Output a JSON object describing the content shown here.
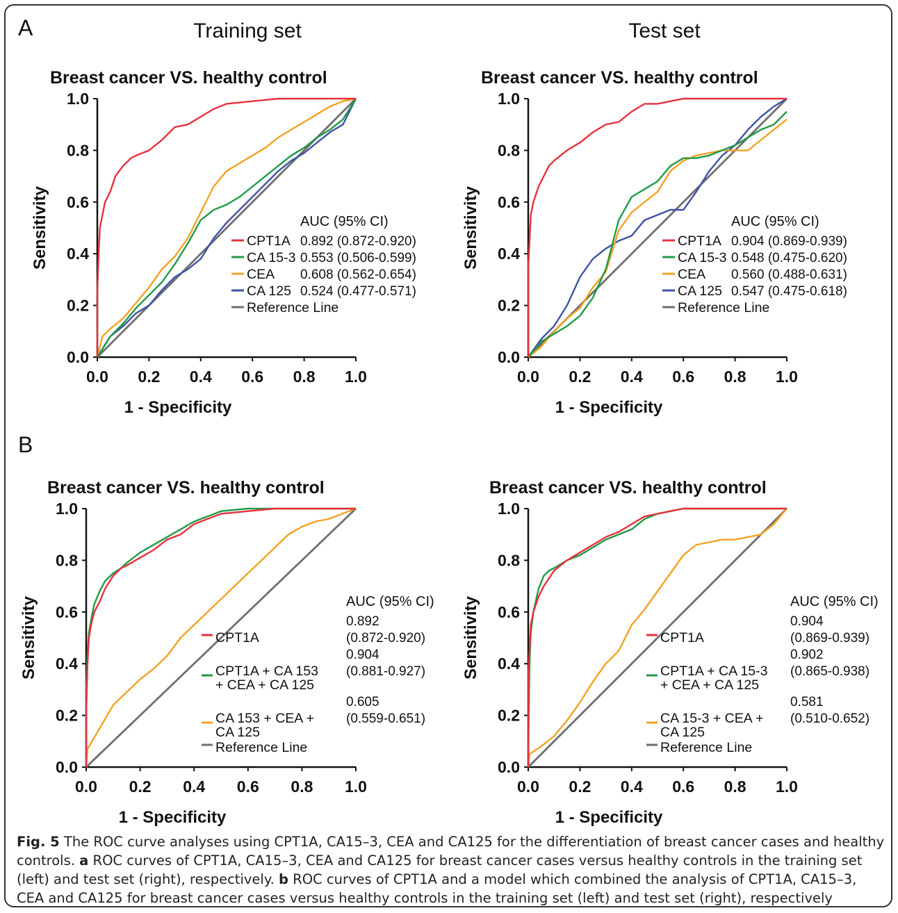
{
  "panels": {
    "A": "A",
    "B": "B"
  },
  "set_titles": {
    "training": "Training set",
    "test": "Test set"
  },
  "colors": {
    "CPT1A": "#e8303a",
    "CA153": "#1f9a48",
    "CEA": "#f4a122",
    "CA125": "#3f52a8",
    "reference": "#6e6e6e",
    "combined_all": "#1f9a48",
    "combined_markers": "#f4a122"
  },
  "caption": {
    "fig_label": "Fig. 5",
    "intro": " The ROC curve analyses using CPT1A, CA15–3, CEA and CA125 for the differentiation of breast cancer cases and healthy controls. ",
    "a_label": "a",
    "a_text": " ROC curves of CPT1A, CA15–3, CEA and CA125 for breast cancer cases versus healthy controls in the training set (left) and test set (right), respectively. ",
    "b_label": "b",
    "b_text": " ROC curves of CPT1A and a model which combined the analysis of CPT1A, CA15–3, CEA and CA125 for breast cancer cases versus healthy controls in the training set (left) and test set (right), respectively"
  },
  "chart_data": [
    {
      "type": "line",
      "title": "Breast cancer VS. healthy control",
      "xlabel": "1 - Specificity",
      "ylabel": "Sensitivity",
      "xlim": [
        0,
        1
      ],
      "ylim": [
        0,
        1
      ],
      "xticks": [
        "0.0",
        "0.2",
        "0.4",
        "0.6",
        "0.8",
        "1.0"
      ],
      "yticks": [
        "0.0",
        "0.2",
        "0.4",
        "0.6",
        "0.8",
        "1.0"
      ],
      "legend_header": "AUC (95% CI)",
      "legend_position": "bottom-right",
      "series": [
        {
          "name": "CPT1A",
          "color_key": "CPT1A",
          "auc": "0.892 (0.872-0.920)",
          "x": [
            0,
            0,
            0.005,
            0.01,
            0.02,
            0.03,
            0.05,
            0.07,
            0.1,
            0.13,
            0.15,
            0.2,
            0.25,
            0.3,
            0.35,
            0.4,
            0.45,
            0.5,
            0.6,
            0.7,
            0.8,
            0.9,
            1.0
          ],
          "y": [
            0,
            0.25,
            0.4,
            0.5,
            0.55,
            0.6,
            0.64,
            0.7,
            0.74,
            0.77,
            0.78,
            0.8,
            0.84,
            0.89,
            0.9,
            0.93,
            0.96,
            0.98,
            0.99,
            1.0,
            1.0,
            1.0,
            1.0
          ]
        },
        {
          "name": "CA 15-3",
          "color_key": "CA153",
          "auc": "0.553 (0.506-0.599)",
          "x": [
            0,
            0.05,
            0.1,
            0.15,
            0.2,
            0.25,
            0.3,
            0.35,
            0.4,
            0.45,
            0.5,
            0.55,
            0.6,
            0.65,
            0.7,
            0.75,
            0.8,
            0.85,
            0.9,
            0.95,
            1.0
          ],
          "y": [
            0,
            0.08,
            0.13,
            0.19,
            0.24,
            0.29,
            0.36,
            0.44,
            0.53,
            0.57,
            0.59,
            0.62,
            0.66,
            0.7,
            0.74,
            0.78,
            0.81,
            0.85,
            0.88,
            0.92,
            1.0
          ]
        },
        {
          "name": "CEA",
          "color_key": "CEA",
          "auc": "0.608 (0.562-0.654)",
          "x": [
            0,
            0.02,
            0.05,
            0.1,
            0.15,
            0.2,
            0.25,
            0.3,
            0.35,
            0.4,
            0.45,
            0.5,
            0.55,
            0.6,
            0.65,
            0.7,
            0.75,
            0.8,
            0.85,
            0.9,
            0.95,
            1.0
          ],
          "y": [
            0,
            0.08,
            0.11,
            0.15,
            0.21,
            0.27,
            0.34,
            0.39,
            0.46,
            0.56,
            0.66,
            0.72,
            0.75,
            0.78,
            0.81,
            0.85,
            0.88,
            0.91,
            0.94,
            0.97,
            0.99,
            1.0
          ]
        },
        {
          "name": "CA 125",
          "color_key": "CA125",
          "auc": "0.524 (0.477-0.571)",
          "x": [
            0,
            0.05,
            0.1,
            0.15,
            0.2,
            0.25,
            0.3,
            0.35,
            0.4,
            0.45,
            0.5,
            0.55,
            0.6,
            0.65,
            0.7,
            0.75,
            0.8,
            0.85,
            0.9,
            0.95,
            1.0
          ],
          "y": [
            0,
            0.08,
            0.12,
            0.17,
            0.2,
            0.26,
            0.31,
            0.34,
            0.38,
            0.46,
            0.52,
            0.57,
            0.62,
            0.67,
            0.72,
            0.76,
            0.79,
            0.83,
            0.87,
            0.9,
            1.0
          ]
        },
        {
          "name": "Reference Line",
          "color_key": "reference",
          "auc": "",
          "x": [
            0,
            1
          ],
          "y": [
            0,
            1
          ]
        }
      ]
    },
    {
      "type": "line",
      "title": "Breast cancer VS. healthy control",
      "xlabel": "1 - Specificity",
      "ylabel": "Sensitivity",
      "xlim": [
        0,
        1
      ],
      "ylim": [
        0,
        1
      ],
      "xticks": [
        "0.0",
        "0.2",
        "0.4",
        "0.6",
        "0.8",
        "1.0"
      ],
      "yticks": [
        "0.0",
        "0.2",
        "0.4",
        "0.6",
        "0.8",
        "1.0"
      ],
      "legend_header": "AUC (95% CI)",
      "legend_position": "bottom-right",
      "series": [
        {
          "name": "CPT1A",
          "color_key": "CPT1A",
          "auc": "0.904 (0.869-0.939)",
          "x": [
            0,
            0,
            0.005,
            0.01,
            0.02,
            0.04,
            0.06,
            0.08,
            0.1,
            0.15,
            0.2,
            0.25,
            0.3,
            0.35,
            0.4,
            0.45,
            0.5,
            0.55,
            0.6,
            0.7,
            0.8,
            0.9,
            1.0
          ],
          "y": [
            0,
            0.35,
            0.45,
            0.55,
            0.6,
            0.66,
            0.7,
            0.74,
            0.76,
            0.8,
            0.83,
            0.87,
            0.9,
            0.91,
            0.95,
            0.98,
            0.98,
            0.99,
            1.0,
            1.0,
            1.0,
            1.0,
            1.0
          ]
        },
        {
          "name": "CA 15-3",
          "color_key": "CA153",
          "auc": "0.548 (0.475-0.620)",
          "x": [
            0,
            0.05,
            0.1,
            0.15,
            0.2,
            0.25,
            0.3,
            0.35,
            0.4,
            0.45,
            0.5,
            0.55,
            0.6,
            0.65,
            0.7,
            0.75,
            0.8,
            0.85,
            0.9,
            0.95,
            1.0
          ],
          "y": [
            0,
            0.06,
            0.09,
            0.12,
            0.16,
            0.23,
            0.34,
            0.53,
            0.62,
            0.65,
            0.68,
            0.74,
            0.77,
            0.77,
            0.78,
            0.8,
            0.82,
            0.85,
            0.88,
            0.9,
            0.95
          ]
        },
        {
          "name": "CEA",
          "color_key": "CEA",
          "auc": "0.560 (0.488-0.631)",
          "x": [
            0,
            0.05,
            0.1,
            0.15,
            0.2,
            0.25,
            0.3,
            0.35,
            0.4,
            0.45,
            0.5,
            0.55,
            0.6,
            0.65,
            0.7,
            0.75,
            0.8,
            0.85,
            0.9,
            0.95,
            1.0
          ],
          "y": [
            0,
            0.04,
            0.1,
            0.15,
            0.19,
            0.27,
            0.33,
            0.49,
            0.56,
            0.6,
            0.64,
            0.72,
            0.76,
            0.78,
            0.79,
            0.8,
            0.8,
            0.8,
            0.84,
            0.88,
            0.92
          ]
        },
        {
          "name": "CA 125",
          "color_key": "CA125",
          "auc": "0.547 (0.475-0.618)",
          "x": [
            0,
            0.05,
            0.1,
            0.15,
            0.2,
            0.25,
            0.3,
            0.35,
            0.4,
            0.45,
            0.5,
            0.55,
            0.6,
            0.65,
            0.7,
            0.75,
            0.8,
            0.85,
            0.9,
            0.95,
            1.0
          ],
          "y": [
            0,
            0.07,
            0.12,
            0.2,
            0.31,
            0.38,
            0.42,
            0.45,
            0.47,
            0.53,
            0.55,
            0.57,
            0.57,
            0.64,
            0.72,
            0.78,
            0.82,
            0.88,
            0.93,
            0.97,
            1.0
          ]
        },
        {
          "name": "Reference Line",
          "color_key": "reference",
          "auc": "",
          "x": [
            0,
            1
          ],
          "y": [
            0,
            1
          ]
        }
      ]
    },
    {
      "type": "line",
      "title": "Breast cancer VS. healthy control",
      "xlabel": "1 - Specificity",
      "ylabel": "Sensitivity",
      "xlim": [
        0,
        1
      ],
      "ylim": [
        0,
        1
      ],
      "xticks": [
        "0.0",
        "0.2",
        "0.4",
        "0.6",
        "0.8",
        "1.0"
      ],
      "yticks": [
        "0.0",
        "0.2",
        "0.4",
        "0.6",
        "0.8",
        "1.0"
      ],
      "legend_header": "AUC (95% CI)",
      "legend_position": "bottom-right",
      "series": [
        {
          "name": "CPT1A",
          "color_key": "CPT1A",
          "auc_lines": [
            "0.892",
            "(0.872-0.920)"
          ],
          "x": [
            0,
            0,
            0.005,
            0.01,
            0.02,
            0.03,
            0.05,
            0.07,
            0.1,
            0.13,
            0.15,
            0.2,
            0.25,
            0.3,
            0.35,
            0.4,
            0.45,
            0.5,
            0.6,
            0.7,
            1.0
          ],
          "y": [
            0,
            0.2,
            0.4,
            0.5,
            0.56,
            0.6,
            0.64,
            0.69,
            0.74,
            0.77,
            0.78,
            0.81,
            0.84,
            0.88,
            0.9,
            0.94,
            0.96,
            0.98,
            0.99,
            1.0,
            1.0
          ]
        },
        {
          "name_lines": [
            "CPT1A + CA 153",
            "+ CEA + CA 125"
          ],
          "color_key": "combined_all",
          "auc_lines": [
            "0.904",
            "(0.881-0.927)"
          ],
          "x": [
            0,
            0,
            0.005,
            0.01,
            0.02,
            0.03,
            0.05,
            0.07,
            0.1,
            0.13,
            0.15,
            0.2,
            0.25,
            0.3,
            0.35,
            0.4,
            0.45,
            0.5,
            0.6,
            0.7,
            1.0
          ],
          "y": [
            0,
            0.3,
            0.44,
            0.52,
            0.58,
            0.63,
            0.68,
            0.72,
            0.75,
            0.77,
            0.79,
            0.83,
            0.86,
            0.89,
            0.92,
            0.95,
            0.97,
            0.99,
            1.0,
            1.0,
            1.0
          ]
        },
        {
          "name_lines": [
            "CA 153 + CEA +",
            "CA 125"
          ],
          "color_key": "combined_markers",
          "auc_lines": [
            "0.605",
            "(0.559-0.651)"
          ],
          "x": [
            0,
            0.005,
            0.05,
            0.1,
            0.15,
            0.2,
            0.25,
            0.3,
            0.35,
            0.4,
            0.45,
            0.5,
            0.55,
            0.6,
            0.65,
            0.7,
            0.75,
            0.8,
            0.85,
            0.9,
            0.95,
            1.0
          ],
          "y": [
            0,
            0.07,
            0.15,
            0.24,
            0.29,
            0.34,
            0.38,
            0.43,
            0.5,
            0.55,
            0.6,
            0.65,
            0.7,
            0.75,
            0.8,
            0.85,
            0.9,
            0.93,
            0.95,
            0.96,
            0.98,
            1.0
          ]
        },
        {
          "name": "Reference Line",
          "color_key": "reference",
          "x": [
            0,
            1
          ],
          "y": [
            0,
            1
          ]
        }
      ]
    },
    {
      "type": "line",
      "title": "Breast cancer VS. healthy control",
      "xlabel": "1 - Specificity",
      "ylabel": "Sensitivity",
      "xlim": [
        0,
        1
      ],
      "ylim": [
        0,
        1
      ],
      "xticks": [
        "0.0",
        "0.2",
        "0.4",
        "0.6",
        "0.8",
        "1.0"
      ],
      "yticks": [
        "0.0",
        "0.2",
        "0.4",
        "0.6",
        "0.8",
        "1.0"
      ],
      "legend_header": "AUC (95% CI)",
      "legend_position": "bottom-right",
      "series": [
        {
          "name": "CPT1A",
          "color_key": "CPT1A",
          "auc_lines": [
            "0.904",
            "(0.869-0.939)"
          ],
          "x": [
            0,
            0,
            0.005,
            0.01,
            0.02,
            0.04,
            0.06,
            0.08,
            0.1,
            0.15,
            0.2,
            0.25,
            0.3,
            0.35,
            0.4,
            0.45,
            0.5,
            0.55,
            0.6,
            0.7,
            1.0
          ],
          "y": [
            0,
            0.36,
            0.45,
            0.55,
            0.6,
            0.66,
            0.7,
            0.73,
            0.76,
            0.8,
            0.83,
            0.86,
            0.89,
            0.91,
            0.94,
            0.97,
            0.98,
            0.99,
            1.0,
            1.0,
            1.0
          ]
        },
        {
          "name_lines": [
            "CPT1A + CA 15-3",
            "+ CEA + CA 125"
          ],
          "color_key": "combined_all",
          "auc_lines": [
            "0.902",
            "(0.865-0.938)"
          ],
          "x": [
            0,
            0,
            0.005,
            0.01,
            0.02,
            0.04,
            0.06,
            0.08,
            0.1,
            0.15,
            0.2,
            0.25,
            0.3,
            0.35,
            0.4,
            0.45,
            0.5,
            0.55,
            0.6,
            0.7,
            1.0
          ],
          "y": [
            0,
            0.05,
            0.4,
            0.52,
            0.6,
            0.69,
            0.74,
            0.76,
            0.77,
            0.8,
            0.82,
            0.85,
            0.88,
            0.9,
            0.92,
            0.96,
            0.98,
            0.99,
            1.0,
            1.0,
            1.0
          ]
        },
        {
          "name_lines": [
            "CA 15-3 + CEA +",
            "CA 125"
          ],
          "color_key": "combined_markers",
          "auc_lines": [
            "0.581",
            "(0.510-0.652)"
          ],
          "x": [
            0,
            0.005,
            0.05,
            0.1,
            0.15,
            0.2,
            0.25,
            0.3,
            0.35,
            0.4,
            0.45,
            0.5,
            0.55,
            0.6,
            0.65,
            0.7,
            0.75,
            0.8,
            0.85,
            0.9,
            0.95,
            1.0
          ],
          "y": [
            0,
            0.05,
            0.08,
            0.12,
            0.18,
            0.25,
            0.33,
            0.4,
            0.45,
            0.55,
            0.61,
            0.68,
            0.75,
            0.82,
            0.86,
            0.87,
            0.88,
            0.88,
            0.89,
            0.9,
            0.94,
            1.0
          ]
        },
        {
          "name": "Reference Line",
          "color_key": "reference",
          "x": [
            0,
            1
          ],
          "y": [
            0,
            1
          ]
        }
      ]
    }
  ]
}
